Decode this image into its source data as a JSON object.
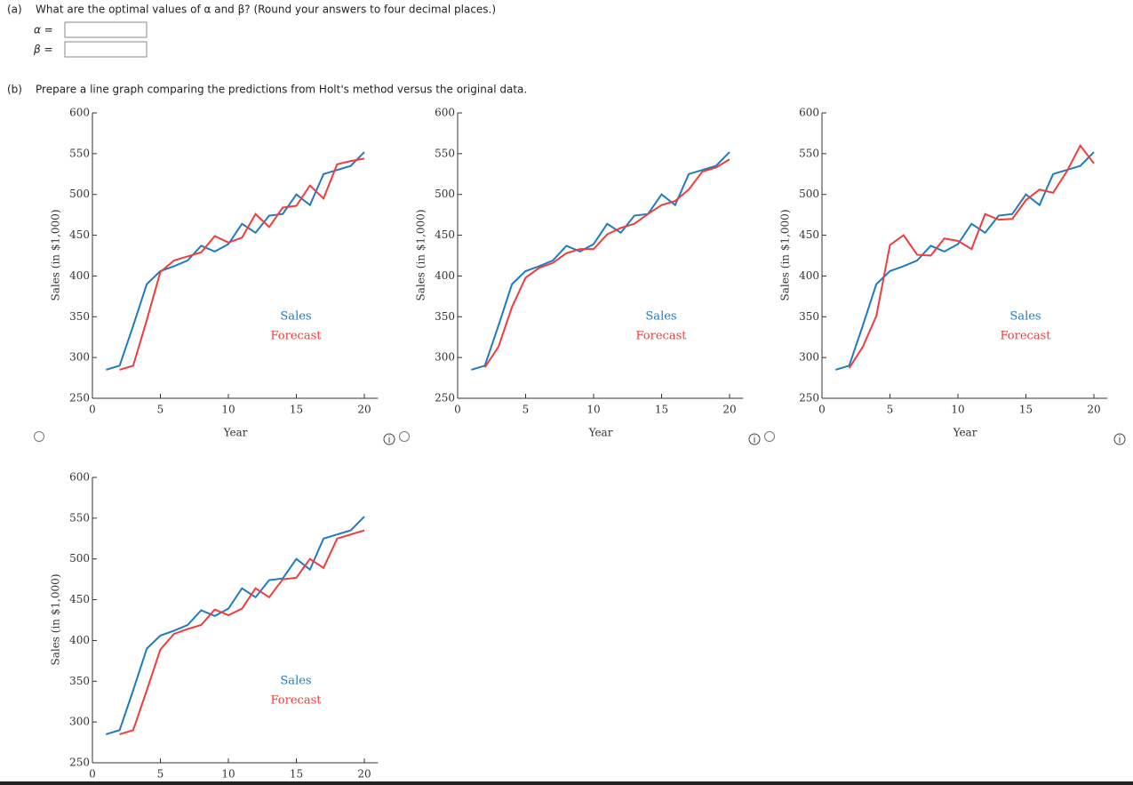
{
  "part_a": {
    "label": "(a)",
    "question": "What are the optimal values of α and β? (Round your answers to four decimal places.)",
    "alpha_label": "α =",
    "beta_label": "β ="
  },
  "part_b": {
    "label": "(b)",
    "question": "Prepare a line graph comparing the predictions from Holt's method versus the original data."
  },
  "chart_data": [
    {
      "type": "line",
      "ylabel": "Sales (in $1,000)",
      "xlabel": "Year",
      "x": [
        1,
        2,
        3,
        4,
        5,
        6,
        7,
        8,
        9,
        10,
        11,
        12,
        13,
        14,
        15,
        16,
        17,
        18,
        19,
        20
      ],
      "series": [
        {
          "name": "Sales",
          "color": "#1f7bc1",
          "values": [
            285,
            290,
            339,
            390,
            406,
            412,
            419,
            437,
            430,
            439,
            464,
            453,
            474,
            476,
            500,
            487,
            525,
            530,
            535,
            552
          ]
        },
        {
          "name": "Forecast",
          "color": "#f23b3b",
          "values": [
            null,
            285,
            290,
            346,
            405,
            419,
            424,
            429,
            449,
            441,
            447,
            476,
            460,
            484,
            486,
            511,
            495,
            537,
            541,
            544
          ]
        }
      ],
      "xlim": [
        0,
        21
      ],
      "ylim": [
        250,
        600
      ],
      "xticks": [
        0,
        5,
        10,
        15,
        20
      ],
      "yticks": [
        250,
        300,
        350,
        400,
        450,
        500,
        550,
        600
      ]
    },
    {
      "type": "line",
      "ylabel": "Sales (in $1,000)",
      "xlabel": "Year",
      "x": [
        1,
        2,
        3,
        4,
        5,
        6,
        7,
        8,
        9,
        10,
        11,
        12,
        13,
        14,
        15,
        16,
        17,
        18,
        19,
        20
      ],
      "series": [
        {
          "name": "Sales",
          "color": "#1f7bc1",
          "values": [
            285,
            290,
            339,
            390,
            406,
            412,
            419,
            437,
            430,
            439,
            464,
            453,
            474,
            476,
            500,
            487,
            525,
            530,
            535,
            552
          ]
        },
        {
          "name": "Forecast",
          "color": "#f23b3b",
          "values": [
            null,
            288,
            313,
            362,
            398,
            410,
            416,
            428,
            433,
            433,
            451,
            459,
            464,
            476,
            487,
            492,
            506,
            528,
            533,
            543
          ]
        }
      ],
      "xlim": [
        0,
        21
      ],
      "ylim": [
        250,
        600
      ],
      "xticks": [
        0,
        5,
        10,
        15,
        20
      ],
      "yticks": [
        250,
        300,
        350,
        400,
        450,
        500,
        550,
        600
      ]
    },
    {
      "type": "line",
      "ylabel": "Sales (in $1,000)",
      "xlabel": "Year",
      "x": [
        1,
        2,
        3,
        4,
        5,
        6,
        7,
        8,
        9,
        10,
        11,
        12,
        13,
        14,
        15,
        16,
        17,
        18,
        19,
        20
      ],
      "series": [
        {
          "name": "Sales",
          "color": "#1f7bc1",
          "values": [
            285,
            290,
            339,
            390,
            406,
            412,
            419,
            437,
            430,
            439,
            464,
            453,
            474,
            476,
            500,
            487,
            525,
            530,
            535,
            552
          ]
        },
        {
          "name": "Forecast",
          "color": "#f23b3b",
          "values": [
            null,
            287,
            313,
            351,
            438,
            450,
            426,
            425,
            446,
            443,
            433,
            476,
            469,
            470,
            493,
            506,
            502,
            528,
            560,
            538
          ]
        }
      ],
      "xlim": [
        0,
        21
      ],
      "ylim": [
        250,
        600
      ],
      "xticks": [
        0,
        5,
        10,
        15,
        20
      ],
      "yticks": [
        250,
        300,
        350,
        400,
        450,
        500,
        550,
        600
      ]
    },
    {
      "type": "line",
      "ylabel": "Sales (in $1,000)",
      "x": [
        1,
        2,
        3,
        4,
        5,
        6,
        7,
        8,
        9,
        10,
        11,
        12,
        13,
        14,
        15,
        16,
        17,
        18,
        19,
        20
      ],
      "series": [
        {
          "name": "Sales",
          "color": "#1f7bc1",
          "values": [
            285,
            290,
            339,
            390,
            406,
            412,
            419,
            437,
            430,
            439,
            464,
            453,
            474,
            476,
            500,
            487,
            525,
            530,
            535,
            552
          ]
        },
        {
          "name": "Forecast",
          "color": "#f23b3b",
          "values": [
            null,
            285,
            290,
            339,
            389,
            408,
            414,
            419,
            438,
            431,
            439,
            464,
            453,
            475,
            477,
            500,
            489,
            525,
            530,
            535
          ]
        }
      ],
      "xlim": [
        0,
        21
      ],
      "ylim": [
        250,
        600
      ],
      "xticks": [
        0,
        5,
        10,
        15,
        20
      ],
      "yticks": [
        250,
        300,
        350,
        400,
        450,
        500,
        550,
        600
      ]
    }
  ]
}
